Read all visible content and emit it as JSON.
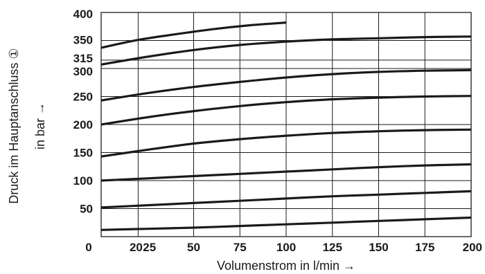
{
  "chart_data": {
    "type": "line",
    "xlabel": "Volumenstrom in l/min →",
    "ylabel_line1": "Druck im Hauptanschluss ①",
    "ylabel_line2": "in bar →",
    "xlim": [
      0,
      200
    ],
    "ylim": [
      0,
      400
    ],
    "x_ticks": [
      0,
      20,
      25,
      50,
      75,
      100,
      125,
      150,
      175,
      200
    ],
    "y_ticks": [
      50,
      100,
      150,
      200,
      250,
      300,
      315,
      350,
      400
    ],
    "x_gridlines": [
      20,
      50,
      75,
      100,
      125,
      150,
      175
    ],
    "y_gridlines": [
      50,
      100,
      150,
      200,
      250,
      300,
      315,
      350
    ],
    "grid": true,
    "series": [
      {
        "points": [
          [
            0,
            12
          ],
          [
            25,
            14
          ],
          [
            50,
            16
          ],
          [
            75,
            19
          ],
          [
            100,
            22
          ],
          [
            125,
            25
          ],
          [
            150,
            28
          ],
          [
            175,
            31
          ],
          [
            200,
            34
          ]
        ]
      },
      {
        "points": [
          [
            0,
            52
          ],
          [
            25,
            56
          ],
          [
            50,
            60
          ],
          [
            75,
            64
          ],
          [
            100,
            68
          ],
          [
            125,
            72
          ],
          [
            150,
            75
          ],
          [
            175,
            78
          ],
          [
            200,
            81
          ]
        ]
      },
      {
        "points": [
          [
            0,
            100
          ],
          [
            25,
            104
          ],
          [
            50,
            108
          ],
          [
            75,
            112
          ],
          [
            100,
            116
          ],
          [
            125,
            120
          ],
          [
            150,
            124
          ],
          [
            175,
            127
          ],
          [
            200,
            129
          ]
        ]
      },
      {
        "points": [
          [
            0,
            143
          ],
          [
            25,
            155
          ],
          [
            50,
            166
          ],
          [
            75,
            174
          ],
          [
            100,
            180
          ],
          [
            125,
            185
          ],
          [
            150,
            188
          ],
          [
            175,
            190
          ],
          [
            200,
            191
          ]
        ]
      },
      {
        "points": [
          [
            0,
            200
          ],
          [
            25,
            213
          ],
          [
            50,
            224
          ],
          [
            75,
            233
          ],
          [
            100,
            240
          ],
          [
            125,
            245
          ],
          [
            150,
            248
          ],
          [
            175,
            250
          ],
          [
            200,
            251
          ]
        ]
      },
      {
        "points": [
          [
            0,
            243
          ],
          [
            25,
            256
          ],
          [
            50,
            267
          ],
          [
            75,
            276
          ],
          [
            100,
            284
          ],
          [
            125,
            290
          ],
          [
            150,
            294
          ],
          [
            175,
            296
          ],
          [
            200,
            297
          ]
        ]
      },
      {
        "points": [
          [
            0,
            307
          ],
          [
            25,
            321
          ],
          [
            50,
            333
          ],
          [
            75,
            342
          ],
          [
            100,
            348
          ],
          [
            125,
            352
          ],
          [
            150,
            354
          ],
          [
            175,
            356
          ],
          [
            200,
            357
          ]
        ]
      },
      {
        "points": [
          [
            0,
            337
          ],
          [
            20,
            351
          ],
          [
            40,
            361
          ],
          [
            60,
            370
          ],
          [
            80,
            377
          ],
          [
            100,
            382
          ]
        ]
      }
    ]
  }
}
